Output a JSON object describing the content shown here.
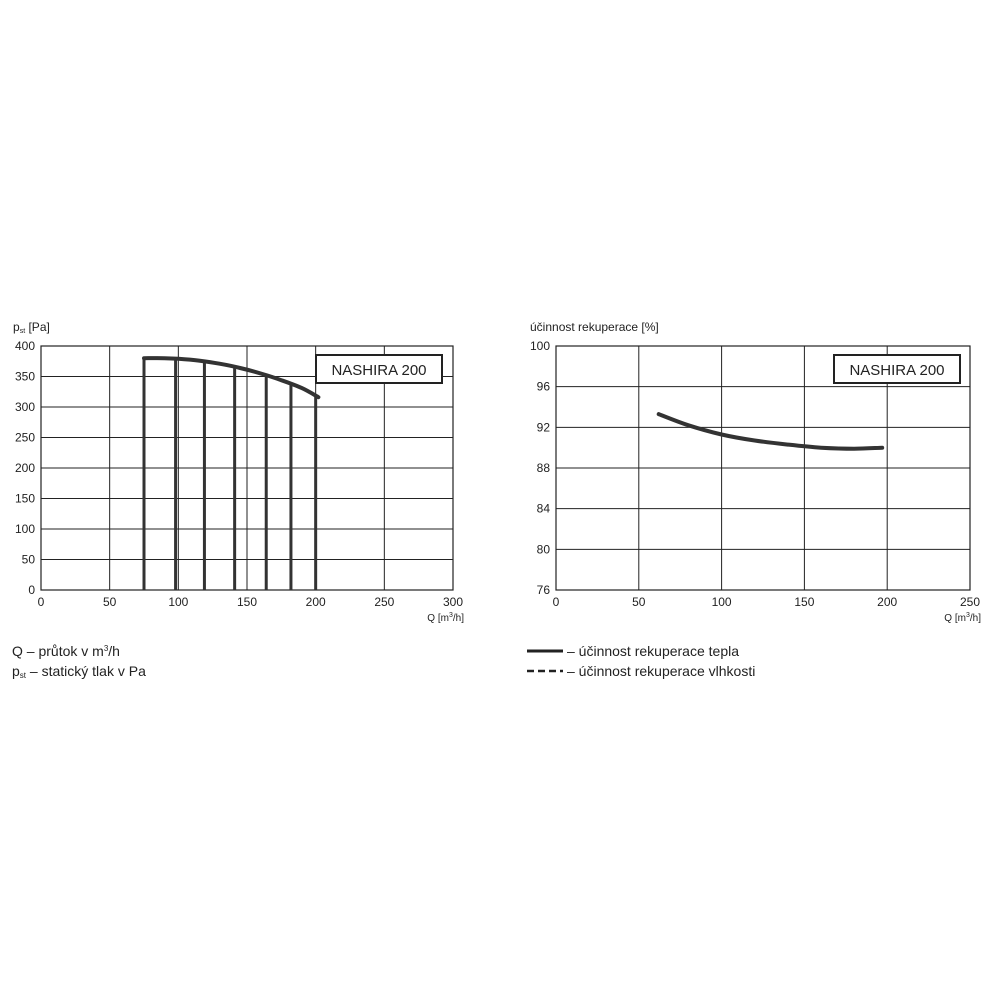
{
  "chart_data": [
    {
      "type": "line",
      "ylabel": {
        "main": "p",
        "sub": "st",
        "unit": " [Pa]"
      },
      "xlabel": {
        "pre": "Q [m",
        "sup": "3",
        "post": "/h]"
      },
      "xlim": [
        0,
        300
      ],
      "ylim": [
        0,
        400
      ],
      "xticks": [
        0,
        50,
        100,
        150,
        200,
        250,
        300
      ],
      "yticks": [
        0,
        50,
        100,
        150,
        200,
        250,
        300,
        350,
        400
      ],
      "grid": true,
      "badge": "NASHIRA 200",
      "series": [
        {
          "x": [
            75,
            90,
            100,
            115,
            130,
            145,
            160,
            175,
            190,
            202
          ],
          "y": [
            380,
            380,
            379,
            376,
            371,
            364,
            355,
            344,
            331,
            316
          ]
        }
      ],
      "operating_points": [
        {
          "x": 75,
          "y": 380
        },
        {
          "x": 98,
          "y": 379
        },
        {
          "x": 119,
          "y": 373
        },
        {
          "x": 141,
          "y": 364
        },
        {
          "x": 164,
          "y": 352
        },
        {
          "x": 182,
          "y": 339
        },
        {
          "x": 200,
          "y": 318
        }
      ]
    },
    {
      "type": "line",
      "ylabel": "účinnost rekuperace [%]",
      "xlabel": {
        "pre": "Q [m",
        "sup": "3",
        "post": "/h]"
      },
      "xlim": [
        0,
        250
      ],
      "ylim": [
        76,
        100
      ],
      "xticks": [
        0,
        50,
        100,
        150,
        200,
        250
      ],
      "yticks": [
        76,
        80,
        84,
        88,
        92,
        96,
        100
      ],
      "grid": true,
      "badge": "NASHIRA 200",
      "series": [
        {
          "x": [
            62,
            80,
            100,
            120,
            140,
            160,
            180,
            197
          ],
          "y": [
            93.3,
            92.2,
            91.3,
            90.7,
            90.3,
            90.0,
            89.9,
            90.0
          ]
        }
      ]
    }
  ],
  "legend_left": {
    "line1": {
      "pre": "Q – průtok v m",
      "sup": "3",
      "post": "/h"
    },
    "line2": {
      "main": "p",
      "sub": "st",
      "post": " – statický tlak v Pa"
    }
  },
  "legend_right": {
    "solid": "– účinnost rekuperace tepla",
    "dashed": "– účinnost rekuperace vlhkosti"
  }
}
